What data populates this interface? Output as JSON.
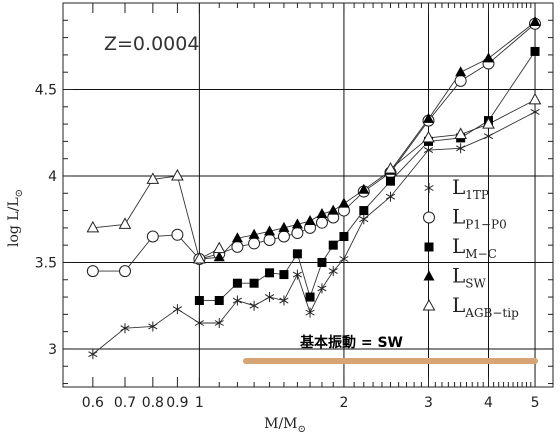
{
  "chart_data": {
    "type": "line",
    "x_scale": "log",
    "xlim": [
      0.52,
      5.45
    ],
    "ylim": [
      2.78,
      5.0
    ],
    "xlabel": "M/M",
    "xlabel_sub": "⊙",
    "ylabel": "log L/L",
    "ylabel_sub": "⊙",
    "x_ticks": [
      0.6,
      0.7,
      0.8,
      0.9,
      1,
      2,
      3,
      4,
      5
    ],
    "x_tick_labels": [
      "0.6",
      "0.7",
      "0.8",
      "0.9",
      "1",
      "2",
      "3",
      "4",
      "5"
    ],
    "y_ticks": [
      3,
      3.5,
      4,
      4.5
    ],
    "y_tick_labels": [
      "3",
      "3.5",
      "4",
      "4.5"
    ],
    "grid": true,
    "legend_position": "right",
    "annotations": {
      "metallicity": "Z=0.0004",
      "cjk_note": "基本振動 = SW",
      "underline_y": 2.93,
      "underline_x": [
        1.25,
        5.0
      ],
      "underline_color": "#d7a476"
    },
    "series": [
      {
        "name": "L",
        "name_sub": "1TP",
        "marker": "star",
        "x": [
          0.6,
          0.7,
          0.8,
          0.9,
          1.0,
          1.1,
          1.2,
          1.3,
          1.4,
          1.5,
          1.6,
          1.7,
          1.8,
          1.9,
          2.0,
          2.2,
          2.5,
          3.0,
          3.5,
          4.0,
          5.0
        ],
        "y": [
          2.97,
          3.12,
          3.13,
          3.23,
          3.15,
          3.15,
          3.28,
          3.25,
          3.3,
          3.28,
          3.43,
          3.21,
          3.35,
          3.45,
          3.52,
          3.75,
          3.88,
          4.15,
          4.16,
          4.23,
          4.37
        ]
      },
      {
        "name": "L",
        "name_sub": "P1−P0",
        "marker": "circle",
        "x": [
          0.6,
          0.7,
          0.8,
          0.9,
          1.0,
          1.1,
          1.2,
          1.3,
          1.4,
          1.5,
          1.6,
          1.7,
          1.8,
          1.9,
          2.0,
          2.2,
          2.5,
          3.0,
          3.5,
          4.0,
          5.0
        ],
        "y": [
          3.45,
          3.45,
          3.65,
          3.66,
          3.52,
          3.55,
          3.59,
          3.61,
          3.63,
          3.65,
          3.67,
          3.7,
          3.73,
          3.76,
          3.8,
          3.91,
          4.02,
          4.32,
          4.55,
          4.65,
          4.88
        ]
      },
      {
        "name": "L",
        "name_sub": "M−C",
        "marker": "square",
        "x": [
          1.0,
          1.1,
          1.2,
          1.3,
          1.4,
          1.5,
          1.6,
          1.7,
          1.8,
          1.9,
          2.0,
          2.2,
          2.5,
          3.0,
          3.5,
          4.0,
          5.0
        ],
        "y": [
          3.28,
          3.28,
          3.38,
          3.38,
          3.44,
          3.43,
          3.55,
          3.3,
          3.5,
          3.6,
          3.65,
          3.8,
          3.97,
          4.2,
          4.22,
          4.32,
          4.72
        ]
      },
      {
        "name": "L",
        "name_sub": "SW",
        "marker": "triangle-filled",
        "x": [
          1.0,
          1.1,
          1.2,
          1.3,
          1.4,
          1.5,
          1.6,
          1.7,
          1.8,
          1.9,
          2.0,
          2.2,
          2.5,
          3.0,
          3.5,
          4.0,
          5.0
        ],
        "y": [
          3.52,
          3.53,
          3.64,
          3.66,
          3.68,
          3.7,
          3.72,
          3.74,
          3.78,
          3.8,
          3.84,
          3.92,
          4.03,
          4.33,
          4.6,
          4.68,
          4.89
        ]
      },
      {
        "name": "L",
        "name_sub": "AGB−tip",
        "marker": "triangle-open",
        "x": [
          0.6,
          0.7,
          0.8,
          0.9,
          1.0,
          1.1
        ],
        "y": [
          3.7,
          3.72,
          3.98,
          4.0,
          3.52,
          3.58
        ]
      },
      {
        "name": "",
        "name_sub": "",
        "marker": "triangle-open",
        "x": [
          2.5,
          3.0,
          3.5,
          4.0,
          5.0
        ],
        "y": [
          4.04,
          4.22,
          4.24,
          4.3,
          4.44
        ],
        "legend": false
      }
    ]
  }
}
